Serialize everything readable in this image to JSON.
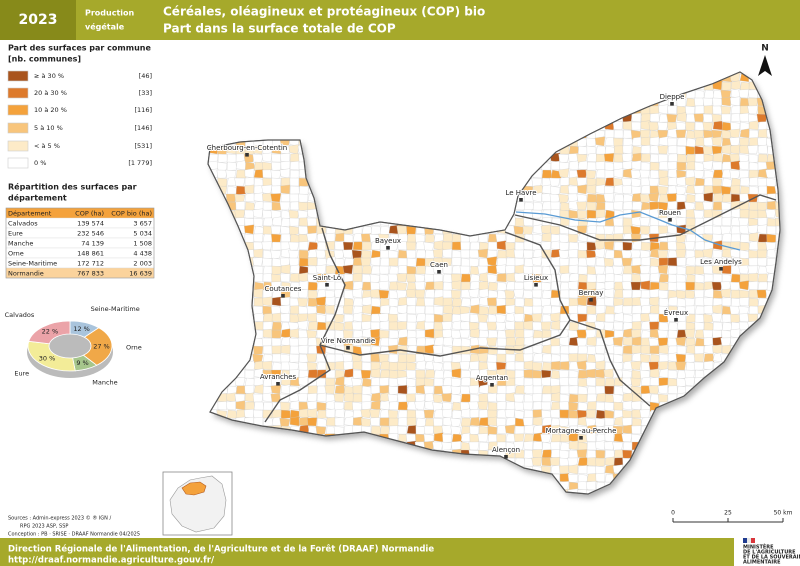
{
  "header": {
    "year": "2023",
    "category": [
      "Production",
      "végétale"
    ],
    "title": [
      "Céréales, oléagineux et protéagineux (COP) bio",
      "Part dans la surface totale de COP"
    ]
  },
  "legend": {
    "title": [
      "Part des surfaces par commune",
      "[nb. communes]"
    ],
    "classes": [
      {
        "label": "≥ à 30 %",
        "count": "[46]",
        "color": "#a9541d"
      },
      {
        "label": "20 à 30 %",
        "count": "[33]",
        "color": "#dd7a2c"
      },
      {
        "label": "10 à 20 %",
        "count": "[116]",
        "color": "#f4a23c"
      },
      {
        "label": "5 à 10 %",
        "count": "[146]",
        "color": "#f8c57c"
      },
      {
        "label": "< à 5 %",
        "count": "[531]",
        "color": "#fdebc8"
      },
      {
        "label": "0 %",
        "count": "[1 779]",
        "color": "#ffffff"
      }
    ]
  },
  "table": {
    "title": [
      "Répartition des surfaces par",
      "département"
    ],
    "header": [
      "Département",
      "COP (ha)",
      "COP bio (ha)"
    ],
    "rows": [
      [
        "Calvados",
        "139 574",
        "3 657"
      ],
      [
        "Eure",
        "232 546",
        "5 034"
      ],
      [
        "Manche",
        "74 139",
        "1 508"
      ],
      [
        "Orne",
        "148 861",
        "4 438"
      ],
      [
        "Seine-Maritime",
        "172 712",
        "2 003"
      ],
      [
        "Normandie",
        "767 833",
        "16 639"
      ]
    ]
  },
  "chart_data": {
    "type": "pie",
    "categories": [
      "Seine-Maritime",
      "Orne",
      "Manche",
      "Eure",
      "Calvados"
    ],
    "values": [
      12,
      27,
      9,
      30,
      22
    ],
    "value_labels": [
      "12 %",
      "27 %",
      "9 %",
      "30 %",
      "22 %"
    ],
    "colors": [
      "#a9c4dc",
      "#f0a848",
      "#a6c68c",
      "#f3ec98",
      "#eba3a8"
    ]
  },
  "map": {
    "cities": [
      "Dieppe",
      "Cherbourg-en-Cotentin",
      "Le Havre",
      "Rouen",
      "Bayeux",
      "Les Andelys",
      "Caen",
      "Saint-Lô",
      "Lisieux",
      "Coutances",
      "Bernay",
      "Évreux",
      "Vire Normandie",
      "Avranches",
      "Argentan",
      "Mortagne-au-Perche",
      "Alençon"
    ],
    "north": "N",
    "scale": [
      "0",
      "25",
      "50 km"
    ]
  },
  "sources": [
    "Sources : Admin-express 2023 © ® IGN /",
    "RPG 2023 ASP, SSP",
    "Conception : PB · SRISE · DRAAF Normandie 04/2025"
  ],
  "footer": {
    "lines": [
      "Direction Régionale de l'Alimentation, de l'Agriculture et de la Forêt (DRAAF) Normandie",
      "http://draaf.normandie.agriculture.gouv.fr/"
    ],
    "logo": [
      "MINISTÈRE",
      "DE L'AGRICULTURE",
      "ET DE LA SOUVERAINETÉ",
      "ALIMENTAIRE"
    ]
  }
}
